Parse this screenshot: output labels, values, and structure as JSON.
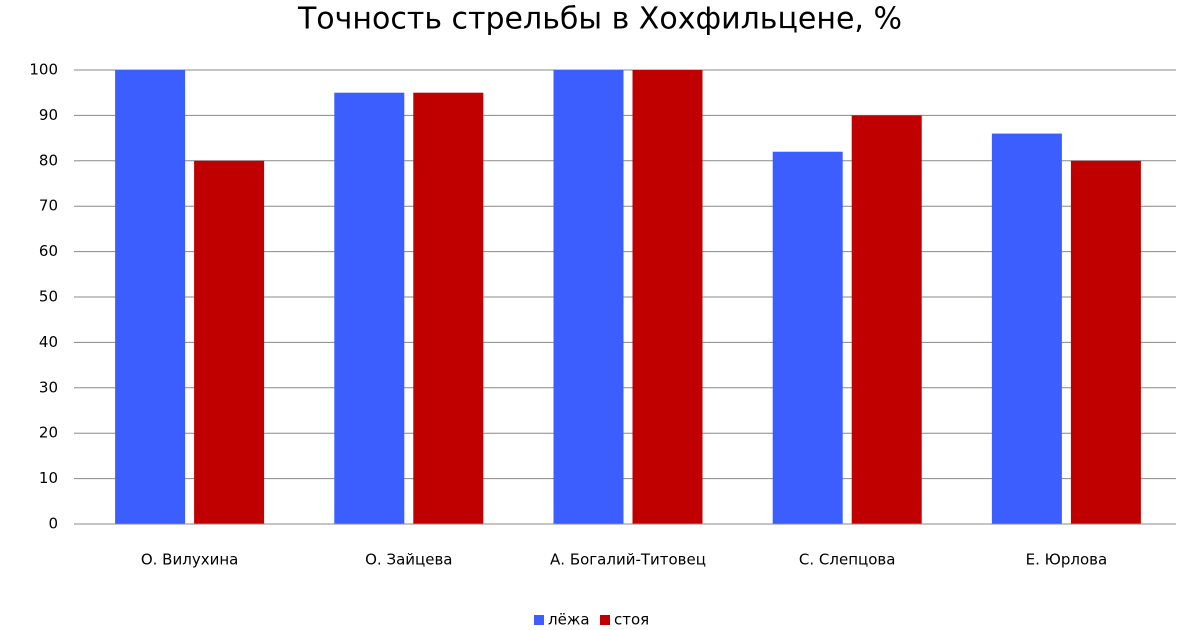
{
  "chart_data": {
    "type": "bar",
    "title": "Точность стрельбы в Хохфильцене, %",
    "categories": [
      "О. Вилухина",
      "О. Зайцева",
      "А. Богалий-Титовец",
      "С. Слепцова",
      "Е. Юрлова"
    ],
    "series": [
      {
        "name": "лёжа",
        "color": "#3d5eff",
        "values": [
          100,
          95,
          100,
          82,
          86
        ]
      },
      {
        "name": "стоя",
        "color": "#c00000",
        "values": [
          80,
          95,
          100,
          90,
          80
        ]
      }
    ],
    "ylim": [
      0,
      100
    ],
    "yticks": [
      0,
      10,
      20,
      30,
      40,
      50,
      60,
      70,
      80,
      90,
      100
    ],
    "grid": true,
    "legend": "bottom"
  }
}
